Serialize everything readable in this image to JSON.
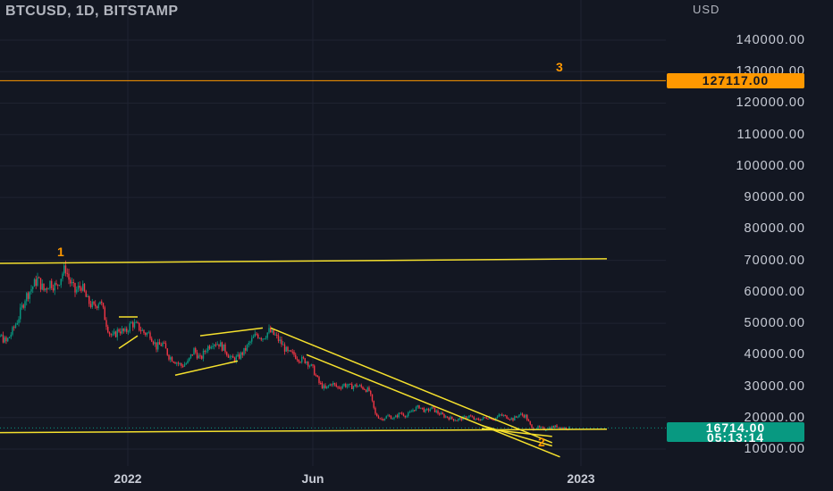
{
  "header": {
    "title": "BTCUSD, 1D, BITSTAMP",
    "currency": "USD"
  },
  "price_axis": {
    "labels": [
      "140000.00",
      "130000.00",
      "120000.00",
      "110000.00",
      "100000.00",
      "90000.00",
      "80000.00",
      "70000.00",
      "60000.00",
      "50000.00",
      "40000.00",
      "30000.00",
      "20000.00",
      "10000.00"
    ]
  },
  "time_axis": {
    "labels": [
      "2022",
      "Jun",
      "2023"
    ]
  },
  "tags": {
    "level": "127117.00",
    "last_price": "16714.00",
    "countdown": "05:13:14"
  },
  "wave_labels": {
    "w1": "1",
    "w2": "2",
    "w3": "3"
  },
  "colors": {
    "background": "#131722",
    "grid": "#1f2331",
    "up_candle": "#089981",
    "down_candle": "#f23645",
    "trendline": "#f5e02d",
    "level_line": "#ff9800",
    "price_tag": "#089981"
  },
  "chart_data": {
    "type": "candlestick",
    "symbol": "BTCUSD",
    "interval": "1D",
    "exchange": "BITSTAMP",
    "ylim": [
      8000,
      150000
    ],
    "horizontal_level": 127117,
    "last_price": 16714,
    "close_path": [
      [
        -20,
        40000
      ],
      [
        -16,
        41000
      ],
      [
        -12,
        39500
      ],
      [
        -8,
        46000
      ],
      [
        -4,
        44000
      ],
      [
        0,
        47500
      ],
      [
        4,
        52000
      ],
      [
        8,
        58000
      ],
      [
        12,
        61000
      ],
      [
        16,
        64000
      ],
      [
        20,
        60500
      ],
      [
        24,
        63000
      ],
      [
        28,
        61500
      ],
      [
        32,
        66000
      ],
      [
        34,
        67500
      ],
      [
        36,
        64000
      ],
      [
        40,
        60000
      ],
      [
        44,
        62000
      ],
      [
        48,
        57000
      ],
      [
        52,
        55000
      ],
      [
        56,
        57500
      ],
      [
        60,
        50000
      ],
      [
        62,
        47000
      ],
      [
        64,
        45500
      ],
      [
        68,
        48000
      ],
      [
        72,
        47000
      ],
      [
        76,
        50000
      ],
      [
        80,
        49000
      ],
      [
        84,
        47000
      ],
      [
        88,
        46500
      ],
      [
        92,
        42500
      ],
      [
        96,
        43500
      ],
      [
        100,
        39500
      ],
      [
        104,
        38000
      ],
      [
        108,
        36500
      ],
      [
        112,
        37500
      ],
      [
        116,
        41500
      ],
      [
        120,
        38500
      ],
      [
        124,
        42000
      ],
      [
        128,
        44000
      ],
      [
        132,
        43500
      ],
      [
        136,
        41500
      ],
      [
        140,
        38500
      ],
      [
        144,
        39000
      ],
      [
        148,
        41000
      ],
      [
        152,
        44000
      ],
      [
        156,
        46500
      ],
      [
        160,
        45500
      ],
      [
        164,
        47500
      ],
      [
        168,
        46000
      ],
      [
        172,
        43500
      ],
      [
        176,
        40500
      ],
      [
        180,
        40000
      ],
      [
        184,
        38500
      ],
      [
        188,
        38000
      ],
      [
        192,
        35500
      ],
      [
        196,
        31000
      ],
      [
        200,
        29000
      ],
      [
        204,
        31000
      ],
      [
        208,
        29500
      ],
      [
        212,
        30500
      ],
      [
        216,
        29800
      ],
      [
        220,
        30200
      ],
      [
        224,
        29500
      ],
      [
        228,
        28500
      ],
      [
        232,
        21000
      ],
      [
        236,
        19500
      ],
      [
        240,
        20500
      ],
      [
        244,
        19800
      ],
      [
        248,
        21500
      ],
      [
        252,
        20500
      ],
      [
        256,
        22500
      ],
      [
        260,
        23500
      ],
      [
        264,
        22000
      ],
      [
        268,
        23000
      ],
      [
        272,
        21500
      ],
      [
        276,
        20500
      ],
      [
        280,
        19800
      ],
      [
        284,
        19300
      ],
      [
        288,
        19800
      ],
      [
        292,
        20500
      ],
      [
        296,
        19200
      ],
      [
        300,
        19600
      ],
      [
        304,
        20200
      ],
      [
        308,
        19600
      ],
      [
        312,
        20800
      ],
      [
        316,
        20200
      ],
      [
        320,
        19500
      ],
      [
        324,
        21000
      ],
      [
        328,
        20500
      ],
      [
        332,
        16500
      ],
      [
        336,
        16800
      ],
      [
        340,
        16300
      ],
      [
        344,
        16900
      ],
      [
        348,
        17200
      ],
      [
        352,
        16700
      ],
      [
        356,
        16714
      ]
    ],
    "trendlines": [
      {
        "label": "upper-horizontal",
        "from": [
          -20,
          69000
        ],
        "to": [
          380,
          70500
        ]
      },
      {
        "label": "lower-horizontal",
        "from": [
          -20,
          15200
        ],
        "to": [
          380,
          16300
        ]
      },
      {
        "label": "long-descending",
        "from": [
          165,
          48500
        ],
        "to": [
          345,
          12000
        ]
      },
      {
        "label": "inner-descending",
        "from": [
          188,
          40000
        ],
        "to": [
          350,
          7500
        ]
      },
      {
        "label": "flag-1",
        "from": [
          68,
          42000
        ],
        "to": [
          80,
          46000
        ]
      },
      {
        "label": "flag-2",
        "from": [
          68,
          52000
        ],
        "to": [
          80,
          52000
        ]
      },
      {
        "label": "channel-top",
        "from": [
          120,
          46000
        ],
        "to": [
          160,
          48500
        ]
      },
      {
        "label": "channel-bottom",
        "from": [
          104,
          33500
        ],
        "to": [
          144,
          38000
        ]
      },
      {
        "label": "bottom-triangle",
        "from": [
          300,
          17500
        ],
        "to": [
          345,
          11000
        ]
      },
      {
        "label": "bottom-triangle-2",
        "from": [
          300,
          16500
        ],
        "to": [
          345,
          14000
        ]
      }
    ]
  }
}
